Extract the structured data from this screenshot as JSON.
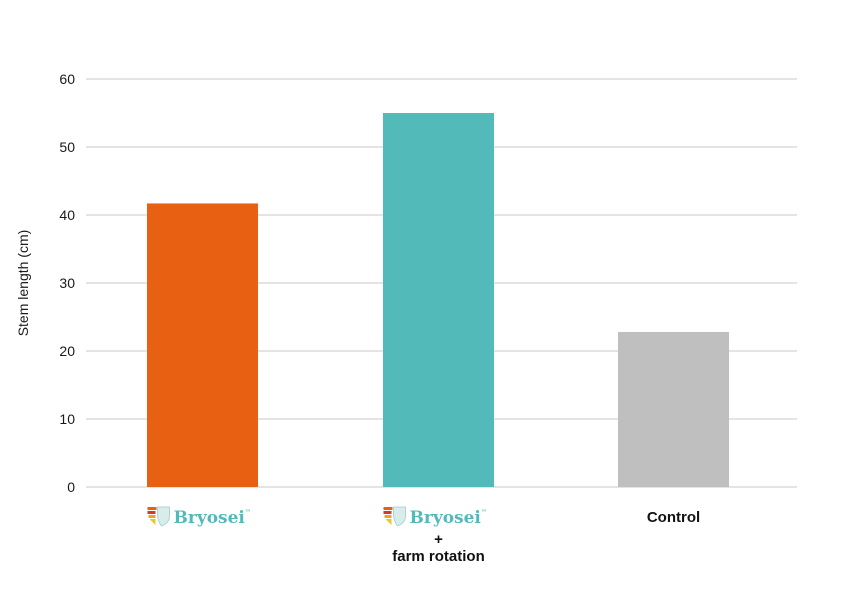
{
  "chart_data": {
    "type": "bar",
    "categories": [
      "Bryosei",
      "Bryosei + farm rotation",
      "Control"
    ],
    "category_labels": [
      {
        "brand": "Bryosei",
        "tm": "™",
        "lines": []
      },
      {
        "brand": "Bryosei",
        "tm": "™",
        "lines": [
          "+",
          "farm rotation"
        ]
      },
      {
        "brand": "",
        "tm": "",
        "lines": [
          "Control"
        ]
      }
    ],
    "values": [
      41.7,
      55,
      22.8
    ],
    "colors": [
      "#E86112",
      "#52BBBA",
      "#BFBFBF"
    ],
    "brand_color": "#52BBBA",
    "xlabel": "",
    "ylabel": "Stem length (cm)",
    "ylim": [
      0,
      60
    ],
    "yticks": [
      0,
      10,
      20,
      30,
      40,
      50,
      60
    ],
    "grid": true,
    "legend": "none"
  }
}
